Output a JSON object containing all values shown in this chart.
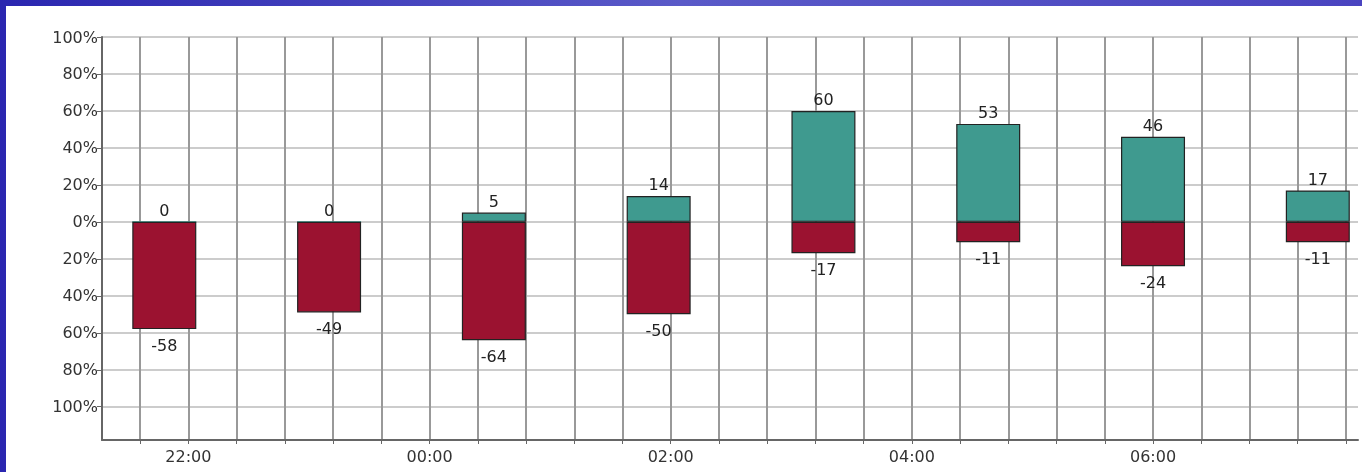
{
  "chart_data": {
    "type": "bar",
    "stacked": true,
    "data_labels": true,
    "grid": true,
    "x": [
      "2000-01-01T21:48",
      "2000-01-01T23:10",
      "2000-01-02T00:32",
      "2000-01-02T01:54",
      "2000-01-02T03:16",
      "2000-01-02T04:38",
      "2000-01-02T06:00",
      "2000-01-02T07:22"
    ],
    "series": [
      {
        "color": "#3f9a8f",
        "values": [
          0,
          0,
          5,
          14,
          60,
          53,
          46,
          17
        ]
      },
      {
        "color": "#9b1230",
        "values": [
          -58,
          -49,
          -64,
          -50,
          -17,
          -11,
          -24,
          -11
        ]
      }
    ],
    "xlim": [
      "2000-01-01T21:17",
      "2000-01-02T07:42"
    ],
    "xticks": [
      {
        "value": "2000-01-01T21:36",
        "label": null
      },
      {
        "value": "2000-01-01T22:00",
        "label": "22:00"
      },
      {
        "value": "2000-01-01T22:24",
        "label": null
      },
      {
        "value": "2000-01-01T22:48",
        "label": null
      },
      {
        "value": "2000-01-01T23:12",
        "label": null
      },
      {
        "value": "2000-01-01T23:36",
        "label": null
      },
      {
        "value": "2000-01-02T00:00",
        "label": "00:00"
      },
      {
        "value": "2000-01-02T00:24",
        "label": null
      },
      {
        "value": "2000-01-02T00:48",
        "label": null
      },
      {
        "value": "2000-01-02T01:12",
        "label": null
      },
      {
        "value": "2000-01-02T01:36",
        "label": null
      },
      {
        "value": "2000-01-02T02:00",
        "label": "02:00"
      },
      {
        "value": "2000-01-02T02:24",
        "label": null
      },
      {
        "value": "2000-01-02T02:48",
        "label": null
      },
      {
        "value": "2000-01-02T03:12",
        "label": null
      },
      {
        "value": "2000-01-02T03:36",
        "label": null
      },
      {
        "value": "2000-01-02T04:00",
        "label": "04:00"
      },
      {
        "value": "2000-01-02T04:24",
        "label": null
      },
      {
        "value": "2000-01-02T04:48",
        "label": null
      },
      {
        "value": "2000-01-02T05:12",
        "label": null
      },
      {
        "value": "2000-01-02T05:36",
        "label": null
      },
      {
        "value": "2000-01-02T06:00",
        "label": "06:00"
      },
      {
        "value": "2000-01-02T06:24",
        "label": null
      },
      {
        "value": "2000-01-02T06:48",
        "label": null
      },
      {
        "value": "2000-01-02T07:12",
        "label": null
      },
      {
        "value": "2000-01-02T07:36",
        "label": null
      }
    ],
    "ylim": [
      -118,
      100
    ],
    "yticks": [
      {
        "value": 100,
        "label": "100%"
      },
      {
        "value": 80,
        "label": "80%"
      },
      {
        "value": 60,
        "label": "60%"
      },
      {
        "value": 40,
        "label": "40%"
      },
      {
        "value": 20,
        "label": "20%"
      },
      {
        "value": 0,
        "label": "0%"
      },
      {
        "value": -20,
        "label": "20%"
      },
      {
        "value": -40,
        "label": "40%"
      },
      {
        "value": -60,
        "label": "60%"
      },
      {
        "value": -80,
        "label": "80%"
      },
      {
        "value": -100,
        "label": "100%"
      }
    ]
  }
}
